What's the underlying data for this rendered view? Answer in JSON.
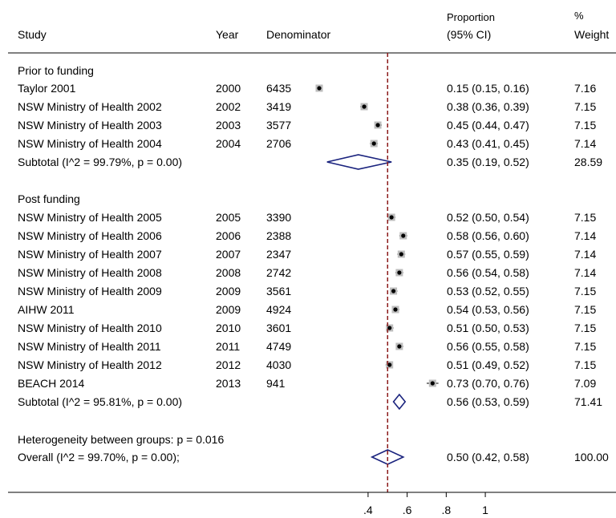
{
  "chart_data": {
    "type": "forest",
    "headers": {
      "study": "Study",
      "year": "Year",
      "denominator": "Denominator",
      "proportion_line1": "Proportion",
      "proportion_line2": "(95% CI)",
      "weight_line1": "%",
      "weight_line2": "Weight"
    },
    "groups": [
      {
        "label": "Prior to funding",
        "studies": [
          {
            "study": "Taylor 2001",
            "year": "2000",
            "denominator": "6435",
            "estimate": 0.15,
            "ci_low": 0.15,
            "ci_high": 0.16,
            "ci_text": "0.15 (0.15, 0.16)",
            "weight": "7.16"
          },
          {
            "study": "NSW Ministry of Health 2002",
            "year": "2002",
            "denominator": "3419",
            "estimate": 0.38,
            "ci_low": 0.36,
            "ci_high": 0.39,
            "ci_text": "0.38 (0.36, 0.39)",
            "weight": "7.15"
          },
          {
            "study": "NSW Ministry of Health 2003",
            "year": "2003",
            "denominator": "3577",
            "estimate": 0.45,
            "ci_low": 0.44,
            "ci_high": 0.47,
            "ci_text": "0.45 (0.44, 0.47)",
            "weight": "7.15"
          },
          {
            "study": "NSW Ministry of Health 2004",
            "year": "2004",
            "denominator": "2706",
            "estimate": 0.43,
            "ci_low": 0.41,
            "ci_high": 0.45,
            "ci_text": "0.43 (0.41, 0.45)",
            "weight": "7.14"
          }
        ],
        "subtotal": {
          "label": "Subtotal  (I^2 = 99.79%, p = 0.00)",
          "estimate": 0.35,
          "ci_low": 0.19,
          "ci_high": 0.52,
          "ci_text": "0.35 (0.19, 0.52)",
          "weight": "28.59"
        }
      },
      {
        "label": "Post funding",
        "studies": [
          {
            "study": "NSW Ministry of Health 2005",
            "year": "2005",
            "denominator": "3390",
            "estimate": 0.52,
            "ci_low": 0.5,
            "ci_high": 0.54,
            "ci_text": "0.52 (0.50, 0.54)",
            "weight": "7.15"
          },
          {
            "study": "NSW Ministry of Health 2006",
            "year": "2006",
            "denominator": "2388",
            "estimate": 0.58,
            "ci_low": 0.56,
            "ci_high": 0.6,
            "ci_text": "0.58 (0.56, 0.60)",
            "weight": "7.14"
          },
          {
            "study": "NSW Ministry of Health 2007",
            "year": "2007",
            "denominator": "2347",
            "estimate": 0.57,
            "ci_low": 0.55,
            "ci_high": 0.59,
            "ci_text": "0.57 (0.55, 0.59)",
            "weight": "7.14"
          },
          {
            "study": "NSW Ministry of Health 2008",
            "year": "2008",
            "denominator": "2742",
            "estimate": 0.56,
            "ci_low": 0.54,
            "ci_high": 0.58,
            "ci_text": "0.56 (0.54, 0.58)",
            "weight": "7.14"
          },
          {
            "study": "NSW Ministry of Health 2009",
            "year": "2009",
            "denominator": "3561",
            "estimate": 0.53,
            "ci_low": 0.52,
            "ci_high": 0.55,
            "ci_text": "0.53 (0.52, 0.55)",
            "weight": "7.15"
          },
          {
            "study": "AIHW 2011",
            "year": "2009",
            "denominator": "4924",
            "estimate": 0.54,
            "ci_low": 0.53,
            "ci_high": 0.56,
            "ci_text": "0.54 (0.53, 0.56)",
            "weight": "7.15"
          },
          {
            "study": "NSW Ministry of Health 2010",
            "year": "2010",
            "denominator": "3601",
            "estimate": 0.51,
            "ci_low": 0.5,
            "ci_high": 0.53,
            "ci_text": "0.51 (0.50, 0.53)",
            "weight": "7.15"
          },
          {
            "study": "NSW Ministry of Health 2011",
            "year": "2011",
            "denominator": "4749",
            "estimate": 0.56,
            "ci_low": 0.55,
            "ci_high": 0.58,
            "ci_text": "0.56 (0.55, 0.58)",
            "weight": "7.15"
          },
          {
            "study": "NSW Ministry of Health 2012",
            "year": "2012",
            "denominator": "4030",
            "estimate": 0.51,
            "ci_low": 0.49,
            "ci_high": 0.52,
            "ci_text": "0.51 (0.49, 0.52)",
            "weight": "7.15"
          },
          {
            "study": "BEACH 2014",
            "year": "2013",
            "denominator": "941",
            "estimate": 0.73,
            "ci_low": 0.7,
            "ci_high": 0.76,
            "ci_text": "0.73 (0.70, 0.76)",
            "weight": "7.09"
          }
        ],
        "subtotal": {
          "label": "Subtotal  (I^2 = 95.81%, p = 0.00)",
          "estimate": 0.56,
          "ci_low": 0.53,
          "ci_high": 0.59,
          "ci_text": "0.56 (0.53, 0.59)",
          "weight": "71.41"
        }
      }
    ],
    "heterogeneity": "Heterogeneity between groups: p = 0.016",
    "overall": {
      "label": "Overall  (I^2 = 99.70%, p = 0.00);",
      "estimate": 0.5,
      "ci_low": 0.42,
      "ci_high": 0.58,
      "ci_text": "0.50 (0.42, 0.58)",
      "weight": "100.00"
    },
    "reference_line": 0.5,
    "x_ticks": [
      0.4,
      0.6,
      0.8,
      1.0
    ],
    "x_tick_labels": [
      ".4",
      ".6",
      ".8",
      "1"
    ],
    "xlim": [
      0.15,
      1.0
    ],
    "colors": {
      "diamond": "#1a237e",
      "reference_line": "#8b1a1a",
      "marker": "#000000",
      "marker_box": "#bdbdbd",
      "axis": "#000000"
    }
  }
}
